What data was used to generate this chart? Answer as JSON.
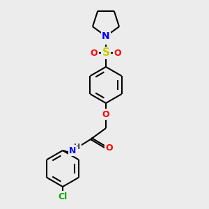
{
  "bg_color": "#ececec",
  "bond_color": "#000000",
  "atom_colors": {
    "N": "#0000ff",
    "O": "#ff0000",
    "S": "#cccc00",
    "Cl": "#00aa00",
    "H": "#444444",
    "C": "#000000"
  },
  "line_width": 1.5,
  "font_size": 9
}
